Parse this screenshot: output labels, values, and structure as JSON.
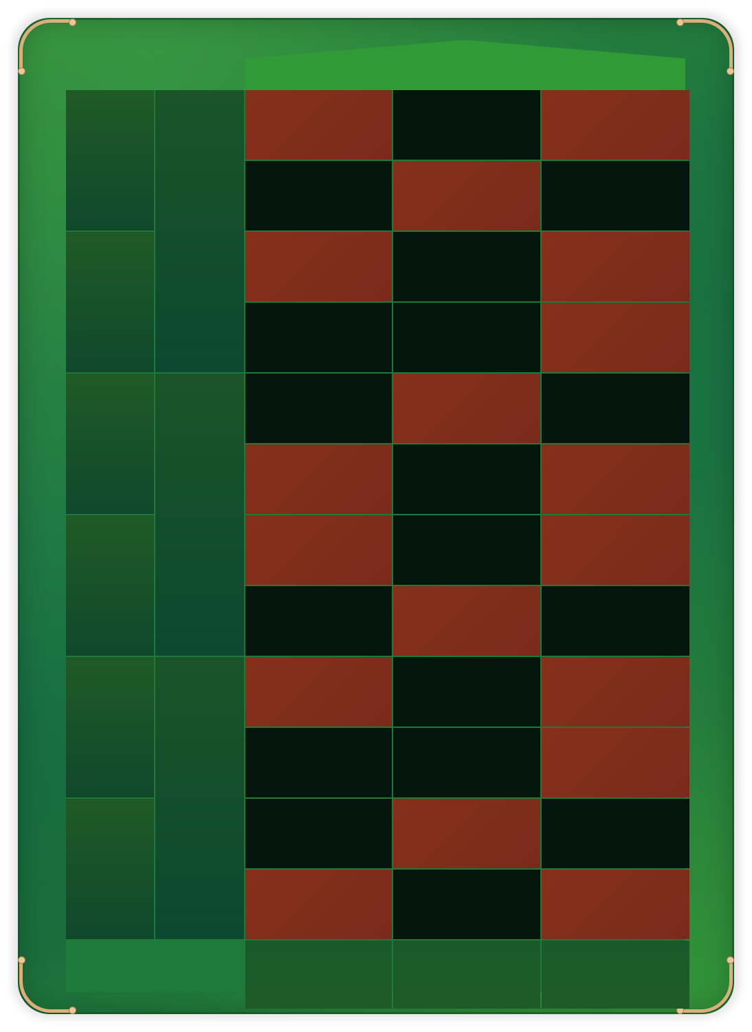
{
  "table": {
    "felt_color": "#1d7440",
    "trim_color": "#d9b07c",
    "zero_color": "#2f9a36"
  },
  "colors": {
    "red": "#82301a",
    "black": "#04150d",
    "outside": "#11492c"
  },
  "number_grid": [
    [
      "red",
      "black",
      "red"
    ],
    [
      "black",
      "red",
      "black"
    ],
    [
      "red",
      "black",
      "red"
    ],
    [
      "black",
      "black",
      "red"
    ],
    [
      "black",
      "red",
      "black"
    ],
    [
      "red",
      "black",
      "red"
    ],
    [
      "red",
      "black",
      "red"
    ],
    [
      "black",
      "red",
      "black"
    ],
    [
      "red",
      "black",
      "red"
    ],
    [
      "black",
      "black",
      "red"
    ],
    [
      "black",
      "red",
      "black"
    ],
    [
      "red",
      "black",
      "red"
    ]
  ],
  "outer_bets": {
    "left_column_cells": 6,
    "dozen_cells": 3,
    "column_bet_cells": 3
  }
}
